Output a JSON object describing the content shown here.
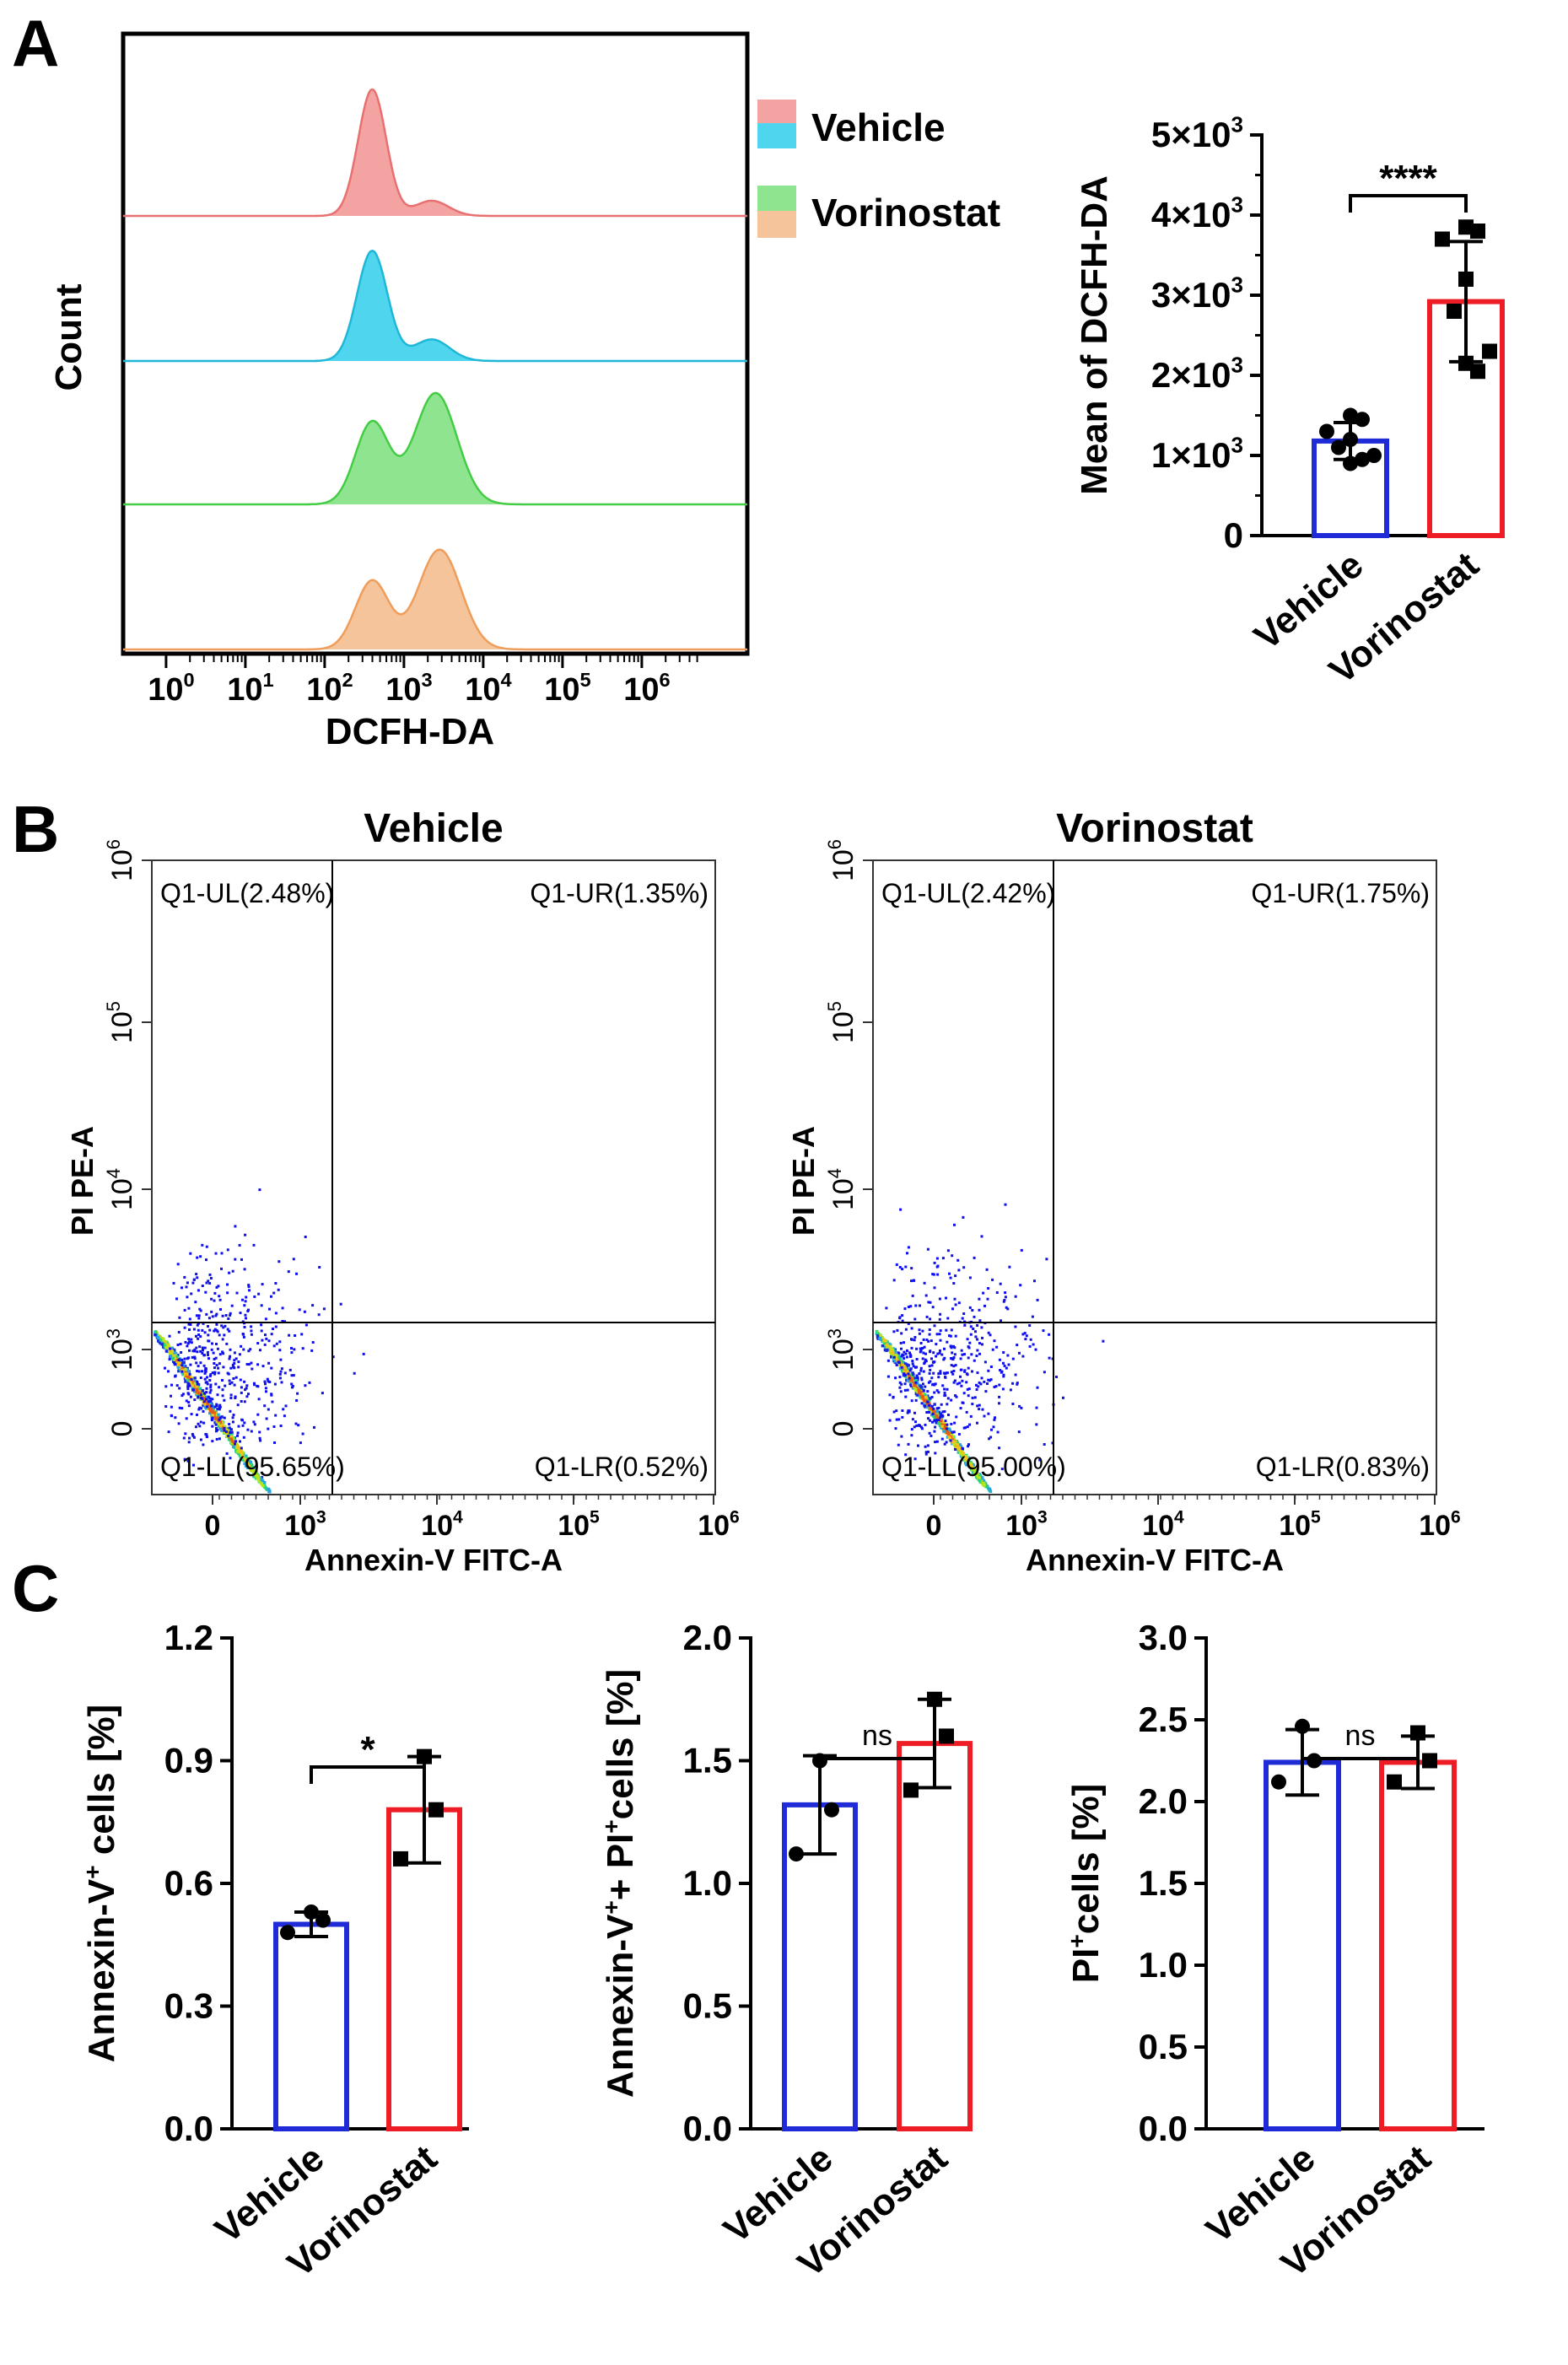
{
  "panels": {
    "A": "A",
    "B": "B",
    "C": "C"
  },
  "colors": {
    "vehicle": "#1f2bd6",
    "vorinostat": "#ee1c24",
    "hist_vehicle_1": "#f4a3a3",
    "hist_vehicle_1_line": "#e87070",
    "hist_vehicle_2": "#4fd6ee",
    "hist_vehicle_2_line": "#1fb7d8",
    "hist_vorinostat_1": "#8fe58f",
    "hist_vorinostat_1_line": "#44cc44",
    "hist_vorinostat_2": "#f5c49b",
    "hist_vorinostat_2_line": "#ee9d5a",
    "dots": "#1010ee",
    "axis": "#000000"
  },
  "chart_data": [
    {
      "id": "A-histogram",
      "type": "area",
      "xlabel": "DCFH-DA",
      "ylabel": "Count",
      "x_scale": "log",
      "x_ticks": [
        "10",
        "10",
        "10",
        "10",
        "10",
        "10",
        "10"
      ],
      "x_tick_exponents": [
        "0",
        "1",
        "2",
        "3",
        "4",
        "5",
        "6"
      ],
      "legend": [
        {
          "label": "Vehicle",
          "swatches": [
            "hist_vehicle_1",
            "hist_vehicle_2"
          ]
        },
        {
          "label": "Vorinostat",
          "swatches": [
            "hist_vorinostat_1",
            "hist_vorinostat_2"
          ]
        }
      ],
      "legend_position": "right",
      "series": [
        {
          "group": "Vehicle",
          "color_key": "hist_vehicle_1",
          "peaks": [
            {
              "log_x": 2.6,
              "height": 1.0,
              "width": 0.25
            },
            {
              "log_x": 3.35,
              "height": 0.12,
              "width": 0.3
            }
          ],
          "range": [
            1.9,
            4.7
          ]
        },
        {
          "group": "Vehicle",
          "color_key": "hist_vehicle_2",
          "peaks": [
            {
              "log_x": 2.6,
              "height": 0.92,
              "width": 0.27
            },
            {
              "log_x": 3.35,
              "height": 0.18,
              "width": 0.32
            }
          ],
          "range": [
            1.9,
            4.7
          ]
        },
        {
          "group": "Vorinostat",
          "color_key": "hist_vorinostat_1",
          "peaks": [
            {
              "log_x": 2.6,
              "height": 0.65,
              "width": 0.3
            },
            {
              "log_x": 3.4,
              "height": 0.88,
              "width": 0.38
            }
          ],
          "range": [
            1.8,
            5.0
          ]
        },
        {
          "group": "Vorinostat",
          "color_key": "hist_vorinostat_2",
          "peaks": [
            {
              "log_x": 2.6,
              "height": 0.55,
              "width": 0.3
            },
            {
              "log_x": 3.45,
              "height": 0.8,
              "width": 0.38
            }
          ],
          "range": [
            1.8,
            5.0
          ]
        }
      ]
    },
    {
      "id": "A-bar",
      "type": "bar",
      "ylabel": "Mean of  DCFH-DA",
      "categories": [
        "Vehicle",
        "Vorinostat"
      ],
      "values": [
        1180,
        2920
      ],
      "errors": [
        230,
        750
      ],
      "points": [
        [
          1500,
          1450,
          1300,
          1200,
          1100,
          1000,
          900,
          950
        ],
        [
          3850,
          3800,
          3700,
          3200,
          2800,
          2300,
          2150,
          2050
        ]
      ],
      "ylim": [
        0,
        5000
      ],
      "y_ticks": [
        0,
        1000,
        2000,
        3000,
        4000,
        5000
      ],
      "y_tick_labels": [
        "0",
        "1×10",
        "2×10",
        "3×10",
        "4×10",
        "5×10"
      ],
      "y_tick_exponent": "3",
      "significance": "****"
    },
    {
      "id": "B-vehicle",
      "type": "scatter",
      "title": "Vehicle",
      "xlabel": "Annexin-V FITC-A",
      "ylabel": "PI PE-A",
      "x_ticks": [
        "0",
        "10",
        "10",
        "10",
        "10"
      ],
      "x_tick_exponents": [
        "",
        "3",
        "4",
        "5",
        "6"
      ],
      "y_ticks": [
        "0",
        "10",
        "10",
        "10",
        "10"
      ],
      "y_tick_exponents": [
        "",
        "3",
        "4",
        "5",
        "6"
      ],
      "quadrants": {
        "UL": "Q1-UL(2.48%)",
        "UR": "Q1-UR(1.35%)",
        "LL": "Q1-LL(95.65%)",
        "LR": "Q1-LR(0.52%)"
      },
      "seed": 7
    },
    {
      "id": "B-vorinostat",
      "type": "scatter",
      "title": "Vorinostat",
      "xlabel": "Annexin-V FITC-A",
      "ylabel": "PI PE-A",
      "x_ticks": [
        "0",
        "10",
        "10",
        "10",
        "10"
      ],
      "x_tick_exponents": [
        "",
        "3",
        "4",
        "5",
        "6"
      ],
      "y_ticks": [
        "0",
        "10",
        "10",
        "10",
        "10"
      ],
      "y_tick_exponents": [
        "",
        "3",
        "4",
        "5",
        "6"
      ],
      "quadrants": {
        "UL": "Q1-UL(2.42%)",
        "UR": "Q1-UR(1.75%)",
        "LL": "Q1-LL(95.00%)",
        "LR": "Q1-LR(0.83%)"
      },
      "seed": 19
    },
    {
      "id": "C-annexin",
      "type": "bar",
      "ylabel": "Annexin-V",
      "ylabel_sup": "+",
      "ylabel_rest": " cells [%]",
      "categories": [
        "Vehicle",
        "Vorinostat"
      ],
      "values": [
        0.5,
        0.78
      ],
      "errors": [
        0.03,
        0.13
      ],
      "points": [
        [
          0.53,
          0.51,
          0.48
        ],
        [
          0.91,
          0.78,
          0.66
        ]
      ],
      "ylim": [
        0,
        1.2
      ],
      "y_ticks": [
        0,
        0.3,
        0.6,
        0.9,
        1.2
      ],
      "y_tick_labels": [
        "0.0",
        "0.3",
        "0.6",
        "0.9",
        "1.2"
      ],
      "significance": "*"
    },
    {
      "id": "C-double",
      "type": "bar",
      "ylabel": "Annexin-V",
      "ylabel_sup": "+",
      "ylabel_mid": "+ PI",
      "ylabel_sup2": "+",
      "ylabel_rest": "cells [%]",
      "categories": [
        "Vehicle",
        "Vorinostat"
      ],
      "values": [
        1.32,
        1.57
      ],
      "errors": [
        0.2,
        0.18
      ],
      "points": [
        [
          1.5,
          1.3,
          1.12
        ],
        [
          1.75,
          1.6,
          1.38
        ]
      ],
      "ylim": [
        0,
        2.0
      ],
      "y_ticks": [
        0,
        0.5,
        1.0,
        1.5,
        2.0
      ],
      "y_tick_labels": [
        "0.0",
        "0.5",
        "1.0",
        "1.5",
        "2.0"
      ],
      "significance": "ns"
    },
    {
      "id": "C-pi",
      "type": "bar",
      "ylabel": "PI",
      "ylabel_sup": "+",
      "ylabel_rest": "cells [%]",
      "categories": [
        "Vehicle",
        "Vorinostat"
      ],
      "values": [
        2.24,
        2.24
      ],
      "errors": [
        0.2,
        0.16
      ],
      "points": [
        [
          2.46,
          2.25,
          2.12
        ],
        [
          2.42,
          2.25,
          2.12
        ]
      ],
      "ylim": [
        0,
        3.0
      ],
      "y_ticks": [
        0,
        0.5,
        1.0,
        1.5,
        2.0,
        2.5,
        3.0
      ],
      "y_tick_labels": [
        "0.0",
        "0.5",
        "1.0",
        "1.5",
        "2.0",
        "2.5",
        "3.0"
      ],
      "significance": "ns"
    }
  ]
}
